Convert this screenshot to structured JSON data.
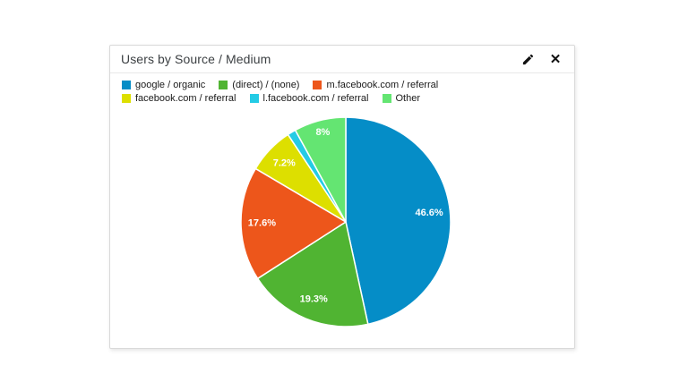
{
  "widget": {
    "title": "Users by Source / Medium",
    "close_glyph": "✕"
  },
  "legend": {
    "items": [
      {
        "label": "google / organic",
        "color": "#058DC7"
      },
      {
        "label": "(direct) / (none)",
        "color": "#50B432"
      },
      {
        "label": "m.facebook.com / referral",
        "color": "#ED561B"
      },
      {
        "label": "facebook.com / referral",
        "color": "#DDDF00"
      },
      {
        "label": "l.facebook.com / referral",
        "color": "#24CBE5"
      },
      {
        "label": "Other",
        "color": "#64E572"
      }
    ]
  },
  "chart_data": {
    "type": "pie",
    "title": "Users by Source / Medium",
    "labels": [
      "google / organic",
      "(direct) / (none)",
      "m.facebook.com / referral",
      "facebook.com / referral",
      "l.facebook.com / referral",
      "Other"
    ],
    "values": [
      46.6,
      19.3,
      17.6,
      7.2,
      1.3,
      8
    ],
    "slice_labels": [
      "46.6%",
      "19.3%",
      "17.6%",
      "7.2%",
      null,
      "8%"
    ],
    "colors": [
      "#058DC7",
      "#50B432",
      "#ED561B",
      "#DDDF00",
      "#24CBE5",
      "#64E572"
    ],
    "start_angle_deg": 0,
    "direction": "clockwise",
    "legend_position": "top-left"
  }
}
